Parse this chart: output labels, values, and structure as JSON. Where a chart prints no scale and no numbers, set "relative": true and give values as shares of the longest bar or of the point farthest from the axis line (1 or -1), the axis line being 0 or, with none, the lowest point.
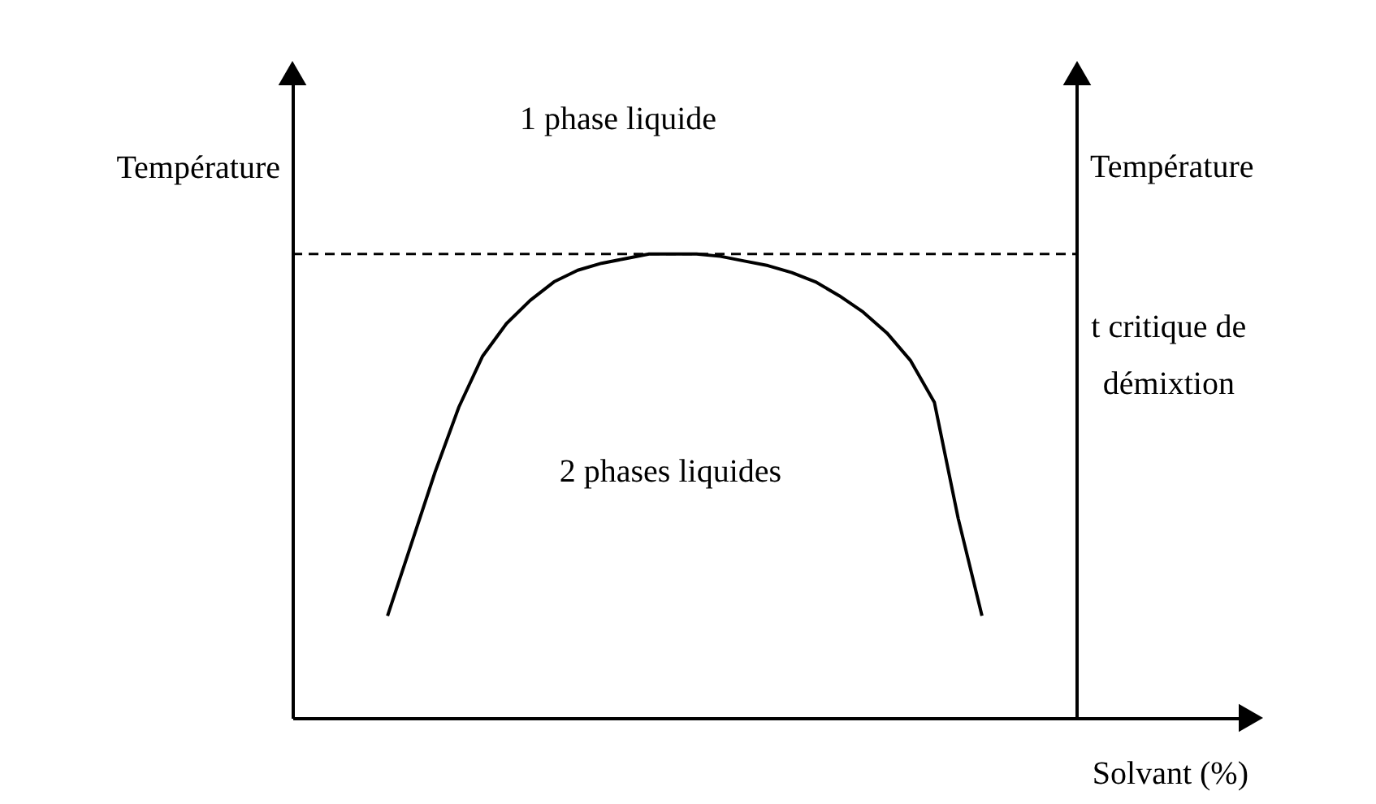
{
  "chart_data": {
    "type": "line",
    "relative": true,
    "ylabel": "Température",
    "y2label": "Température",
    "xlabel": "Solvant (%)",
    "categories": [
      null,
      null,
      null,
      null,
      null,
      null,
      null,
      null,
      null,
      null,
      null,
      null,
      null,
      null,
      null,
      null,
      null,
      null,
      null,
      null,
      null,
      null,
      null,
      null,
      null,
      null,
      null,
      null,
      null,
      null,
      null,
      null,
      null,
      null
    ],
    "series": [
      {
        "color": "#000000",
        "values": [
          null,
          null,
          null,
          null,
          0.22,
          0.375,
          0.53,
          0.67,
          0.78,
          0.85,
          0.9,
          0.94,
          0.965,
          0.98,
          0.99,
          1,
          1,
          1,
          0.995,
          0.985,
          0.975,
          0.96,
          0.94,
          0.91,
          0.875,
          0.83,
          0.77,
          0.68,
          0.43,
          0.22,
          null,
          null,
          null,
          null
        ]
      }
    ],
    "ref_lines": [
      {
        "axis": "y",
        "value": 1,
        "label": "t critique de démixtion",
        "line_style": "dashed",
        "color": "#000000"
      }
    ],
    "annotations": [
      "1 phase liquide",
      "2 phases liquides"
    ],
    "marker": "none",
    "line_style": "solid",
    "grid": false
  }
}
